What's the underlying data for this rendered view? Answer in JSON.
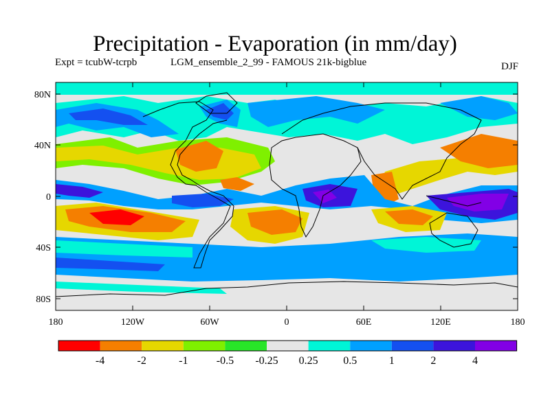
{
  "title": "Precipitation - Evaporation (in mm/day)",
  "subtitle_left": "Expt = tcubW-tcrpb",
  "subtitle_mid": "LGM_ensemble_2_99 - FAMOUS 21k-bigblue",
  "subtitle_right": "DJF",
  "y_ticks": [
    "80N",
    "40N",
    "0",
    "40S",
    "80S"
  ],
  "x_ticks": [
    "180",
    "120W",
    "60W",
    "0",
    "60E",
    "120E",
    "180"
  ],
  "legend": {
    "colors": [
      "#ff0000",
      "#f57f00",
      "#e6d700",
      "#7ff000",
      "#28e628",
      "#e6e6e6",
      "#00f5d7",
      "#00a0ff",
      "#1450f0",
      "#3c14dc",
      "#8200e6"
    ],
    "labels": [
      "-4",
      "-2",
      "-1",
      "-0.5",
      "-0.25",
      "0.25",
      "0.5",
      "1",
      "2",
      "4"
    ]
  },
  "palette": {
    "background": "#e6e6e6",
    "coast": "#000000"
  }
}
